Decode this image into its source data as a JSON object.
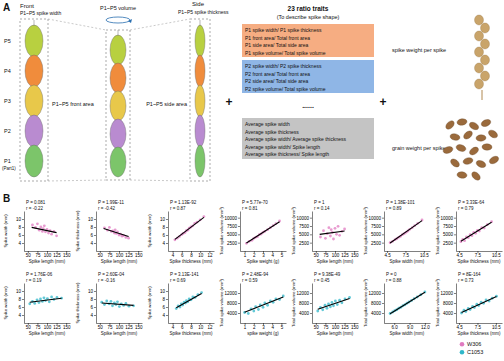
{
  "panel_a": {
    "label": "A",
    "front": {
      "title": "Front",
      "width_label": "P1~P5 spike width",
      "segments": [
        "P5",
        "P4",
        "P3",
        "P2",
        "P1"
      ],
      "segment_colors": [
        "#b8d040",
        "#f08c3c",
        "#e8c84a",
        "#b98bd0",
        "#7cc56a"
      ],
      "part_label": "(Part1)",
      "area_label": "P1~P5 front area"
    },
    "volume_label": "P1~P5 volume",
    "side": {
      "title": "Side",
      "thickness_label": "P1~P5 spike thickness",
      "area_label": "P1~P5 side area"
    },
    "plus": "+",
    "ratio": {
      "title": "23 ratio traits",
      "subtitle": "(To describe spike shape)",
      "groups": [
        {
          "color": "#f6ad82",
          "lines": [
            "P1 spike width/ P1 spike thickness",
            "P1 front area/ Total front area",
            "P1 side area/ Total side area",
            "P1 spike volume/ Total spike volume"
          ]
        },
        {
          "color": "#8fb6e6",
          "lines": [
            "P2 spike width/ P2 spike thickness",
            "P2 front area/ Total front area",
            "P2 side area/ Total side area",
            "P2 spike volume/ Total spike volume"
          ]
        }
      ],
      "ellipsis": "......",
      "average": {
        "color": "#c4c4c4",
        "lines": [
          "Average spike width",
          "Average spike thickness",
          "Average spike width/ Average spike thickness",
          "Average spike width/ Spike length",
          "Average spike thickness/ Spike length"
        ]
      }
    },
    "weights": [
      "spike weight per spike",
      "grain weight per spike"
    ]
  },
  "panel_b_label": "B",
  "figure_legend": {
    "entries": [
      {
        "name": "W306",
        "color": "#e07ac0"
      },
      {
        "name": "C1053",
        "color": "#2fb7c9"
      }
    ]
  },
  "chart_data": [
    {
      "type": "scatter",
      "x_label": "Spike length (mm)",
      "y_label": "Spike width (mm)",
      "annotations": [
        "P = 0.081",
        "r = -0.22"
      ],
      "xlim": [
        40,
        160
      ],
      "xticks": [
        50,
        75,
        100,
        125,
        150
      ],
      "ylim": [
        2,
        12
      ],
      "yticks": [
        4,
        6,
        8,
        10
      ],
      "series": [
        {
          "color": "#e07ac0",
          "x": [
            62,
            70,
            75,
            80,
            84,
            88,
            90,
            93,
            96,
            100,
            104,
            108,
            112,
            118,
            125
          ],
          "values": [
            8.5,
            7.9,
            8.8,
            7.2,
            8.0,
            6.9,
            7.6,
            8.3,
            6.8,
            7.4,
            6.5,
            7.1,
            6.2,
            6.9,
            5.8
          ]
        }
      ],
      "fit_line": {
        "x": [
          60,
          125
        ],
        "values": [
          7.9,
          6.6
        ]
      }
    },
    {
      "type": "scatter",
      "x_label": "Spike length (mm)",
      "y_label": "Spike thickness (mm)",
      "annotations": [
        "P = 1.99E-11",
        "r = -0.42"
      ],
      "xlim": [
        40,
        160
      ],
      "xticks": [
        50,
        75,
        100,
        125,
        150
      ],
      "ylim": [
        2,
        12
      ],
      "yticks": [
        4,
        6,
        8,
        10
      ],
      "series": [
        {
          "color": "#e07ac0",
          "x": [
            62,
            70,
            75,
            80,
            84,
            88,
            90,
            93,
            96,
            100,
            104,
            108,
            112,
            118,
            125
          ],
          "values": [
            7.8,
            7.2,
            7.9,
            6.9,
            7.0,
            6.5,
            7.3,
            6.4,
            6.8,
            6.0,
            6.2,
            5.7,
            5.9,
            5.4,
            5.2
          ]
        }
      ],
      "fit_line": {
        "x": [
          60,
          125
        ],
        "values": [
          7.6,
          5.6
        ]
      }
    },
    {
      "type": "scatter",
      "x_label": "Spike thickness (mm)",
      "y_label": "Spike width (mm)",
      "annotations": [
        "P = 1.13E-92",
        "r = 0.87"
      ],
      "xlim": [
        3,
        13
      ],
      "xticks": [
        4,
        6,
        8,
        10,
        12
      ],
      "ylim": [
        2,
        12
      ],
      "yticks": [
        4,
        6,
        8,
        10
      ],
      "series": [
        {
          "color": "#e07ac0",
          "x": [
            4.5,
            5,
            5.5,
            6,
            6.3,
            6.7,
            7,
            7.3,
            7.6,
            8,
            8.4,
            8.8,
            9.3,
            10,
            10.8
          ],
          "values": [
            4.8,
            5.2,
            5.6,
            6.1,
            6.4,
            6.6,
            7.1,
            7.2,
            7.7,
            8.0,
            8.3,
            8.9,
            9.2,
            9.8,
            10.6
          ]
        }
      ],
      "fit_line": {
        "x": [
          4.5,
          10.8
        ],
        "values": [
          4.9,
          10.4
        ]
      }
    },
    {
      "type": "scatter",
      "x_label": "Spike weight (g)",
      "y_label": "Total spike volume (mm³)",
      "annotations": [
        "P = 5.77e-70",
        "r = 0.81"
      ],
      "xlim": [
        0.5,
        5.5
      ],
      "xticks": [
        1,
        2,
        3,
        4,
        5
      ],
      "ylim": [
        0,
        12000
      ],
      "yticks": [
        2500,
        5000,
        7500,
        10000
      ],
      "series": [
        {
          "color": "#e07ac0",
          "x": [
            1.2,
            1.5,
            1.8,
            2.0,
            2.2,
            2.4,
            2.6,
            2.8,
            3.0,
            3.2,
            3.5,
            3.8,
            4.1,
            4.4,
            4.8
          ],
          "values": [
            2300,
            2900,
            3200,
            3800,
            4100,
            4300,
            4900,
            5100,
            5600,
            5900,
            6400,
            7000,
            7600,
            8200,
            9000
          ]
        }
      ],
      "fit_line": {
        "x": [
          1.2,
          4.8
        ],
        "values": [
          2400,
          8800
        ]
      }
    },
    {
      "type": "scatter",
      "x_label": "Spike length (mm)",
      "y_label": "Total spike volume (mm³)",
      "annotations": [
        "P = 1",
        "r = 0.14"
      ],
      "xlim": [
        40,
        160
      ],
      "xticks": [
        50,
        75,
        100,
        125,
        150
      ],
      "ylim": [
        0,
        12000
      ],
      "yticks": [
        2500,
        5000,
        7500,
        10000
      ],
      "series": [
        {
          "color": "#e07ac0",
          "x": [
            62,
            70,
            75,
            80,
            84,
            88,
            90,
            93,
            96,
            100,
            104,
            108,
            112,
            118,
            125
          ],
          "values": [
            4200,
            6100,
            3800,
            5200,
            7000,
            4500,
            6400,
            5600,
            3600,
            6800,
            5000,
            7400,
            4700,
            5900,
            6600
          ]
        }
      ],
      "fit_line": {
        "x": [
          60,
          125
        ],
        "values": [
          5000,
          6000
        ]
      }
    },
    {
      "type": "scatter",
      "x_label": "Spike width (mm)",
      "y_label": "Total spike volume (mm³)",
      "annotations": [
        "P = 1.38E-101",
        "r = 0.89"
      ],
      "xlim": [
        4,
        11.5
      ],
      "xticks": [
        4.5,
        7.5,
        10.5
      ],
      "ylim": [
        0,
        12000
      ],
      "yticks": [
        2500,
        5000,
        7500,
        10000
      ],
      "series": [
        {
          "color": "#e07ac0",
          "x": [
            5.0,
            5.4,
            5.8,
            6.1,
            6.4,
            6.7,
            7.0,
            7.3,
            7.6,
            7.9,
            8.2,
            8.6,
            9.0,
            9.5,
            10.2
          ],
          "values": [
            2500,
            2900,
            3400,
            3700,
            4100,
            4400,
            4900,
            5200,
            5600,
            6000,
            6500,
            7000,
            7600,
            8300,
            9300
          ]
        }
      ],
      "fit_line": {
        "x": [
          5.0,
          10.2
        ],
        "values": [
          2400,
          9100
        ]
      }
    },
    {
      "type": "scatter",
      "x_label": "Spike thickness (mm)",
      "y_label": "Total spike volume (mm³)",
      "annotations": [
        "P = 3.33E-64",
        "r = 0.79"
      ],
      "xlim": [
        4,
        11.5
      ],
      "xticks": [
        4.5,
        7.5,
        10.5
      ],
      "ylim": [
        0,
        12000
      ],
      "yticks": [
        2500,
        5000,
        7500,
        10000
      ],
      "series": [
        {
          "color": "#e07ac0",
          "x": [
            4.8,
            5.1,
            5.4,
            5.7,
            6.0,
            6.3,
            6.6,
            6.9,
            7.2,
            7.5,
            7.8,
            8.2,
            8.6,
            9.1,
            9.8
          ],
          "values": [
            2800,
            3500,
            3100,
            4200,
            4000,
            4900,
            4600,
            5600,
            5300,
            6200,
            6000,
            7000,
            6900,
            7900,
            8800
          ]
        }
      ],
      "fit_line": {
        "x": [
          4.8,
          9.8
        ],
        "values": [
          2900,
          8600
        ]
      }
    },
    {
      "type": "scatter",
      "x_label": "Spike length (mm)",
      "y_label": "Spike width (mm)",
      "annotations": [
        "P = 1.76E-06",
        "r = 0.19"
      ],
      "xlim": [
        40,
        160
      ],
      "xticks": [
        50,
        75,
        100,
        125,
        150
      ],
      "ylim": [
        2,
        12
      ],
      "yticks": [
        4,
        6,
        8,
        10
      ],
      "series": [
        {
          "color": "#2fb7c9",
          "x": [
            55,
            62,
            68,
            74,
            79,
            83,
            88,
            92,
            96,
            101,
            106,
            112,
            118,
            126,
            138
          ],
          "values": [
            6.8,
            7.4,
            6.9,
            7.8,
            7.1,
            8.0,
            7.4,
            8.3,
            7.6,
            8.1,
            7.3,
            8.5,
            7.9,
            8.4,
            8.2
          ]
        }
      ],
      "fit_line": {
        "x": [
          55,
          138
        ],
        "values": [
          7.2,
          8.2
        ]
      }
    },
    {
      "type": "scatter",
      "x_label": "Spike length (mm)",
      "y_label": "Spike thickness (mm)",
      "annotations": [
        "P = 2.60E-04",
        "r = -0.16"
      ],
      "xlim": [
        40,
        160
      ],
      "xticks": [
        50,
        75,
        100,
        125,
        150
      ],
      "ylim": [
        2,
        12
      ],
      "yticks": [
        4,
        6,
        8,
        10
      ],
      "series": [
        {
          "color": "#2fb7c9",
          "x": [
            55,
            62,
            68,
            74,
            79,
            83,
            88,
            92,
            96,
            101,
            106,
            112,
            118,
            126,
            138
          ],
          "values": [
            7.2,
            6.6,
            7.5,
            6.8,
            7.4,
            6.3,
            7.0,
            6.6,
            7.3,
            6.1,
            6.8,
            6.4,
            6.9,
            6.2,
            6.3
          ]
        }
      ],
      "fit_line": {
        "x": [
          55,
          138
        ],
        "values": [
          7.0,
          6.4
        ]
      }
    },
    {
      "type": "scatter",
      "x_label": "Spike thickness (mm)",
      "y_label": "Spike width (mm)",
      "annotations": [
        "P = 3.13E-141",
        "r = 0.69"
      ],
      "xlim": [
        3,
        13
      ],
      "xticks": [
        4,
        6,
        8,
        10,
        12
      ],
      "ylim": [
        2,
        12
      ],
      "yticks": [
        4,
        6,
        8,
        10
      ],
      "series": [
        {
          "color": "#2fb7c9",
          "x": [
            4.8,
            5.2,
            5.6,
            5.9,
            6.2,
            6.5,
            6.8,
            7.0,
            7.3,
            7.6,
            8.0,
            8.4,
            8.9,
            9.5,
            10.3
          ],
          "values": [
            5.6,
            6.3,
            6.0,
            6.8,
            6.5,
            7.2,
            7.0,
            7.6,
            7.3,
            8.0,
            7.8,
            8.5,
            8.4,
            9.1,
            9.6
          ]
        }
      ],
      "fit_line": {
        "x": [
          4.8,
          10.3
        ],
        "values": [
          5.8,
          9.4
        ]
      }
    },
    {
      "type": "scatter",
      "x_label": "spike weight (g)",
      "y_label": "Total spike volume (mm³)",
      "annotations": [
        "P = 2.48E-94",
        "r = 0.59"
      ],
      "xlim": [
        0.5,
        5.5
      ],
      "xticks": [
        1,
        2,
        3,
        4,
        5
      ],
      "ylim": [
        0,
        16000
      ],
      "yticks": [
        4000,
        8000,
        12000
      ],
      "series": [
        {
          "color": "#2fb7c9",
          "x": [
            1.0,
            1.4,
            1.7,
            2.0,
            2.2,
            2.5,
            2.7,
            3.0,
            3.2,
            3.5,
            3.8,
            4.1,
            4.4,
            4.8,
            5.2
          ],
          "values": [
            4200,
            3800,
            5600,
            4800,
            6500,
            5400,
            7200,
            6300,
            8000,
            7100,
            8800,
            8300,
            9600,
            9400,
            10800
          ]
        }
      ],
      "fit_line": {
        "x": [
          1.0,
          5.2
        ],
        "values": [
          4300,
          10400
        ]
      }
    },
    {
      "type": "scatter",
      "x_label": "Spike length (mm)",
      "y_label": "Total spike volume (mm³)",
      "annotations": [
        "P = 9.38E-49",
        "r = 0.45"
      ],
      "xlim": [
        40,
        160
      ],
      "xticks": [
        50,
        75,
        100,
        125,
        150
      ],
      "ylim": [
        0,
        16000
      ],
      "yticks": [
        4000,
        8000,
        12000
      ],
      "series": [
        {
          "color": "#2fb7c9",
          "x": [
            55,
            62,
            68,
            74,
            79,
            83,
            88,
            92,
            96,
            101,
            106,
            112,
            118,
            126,
            138
          ],
          "values": [
            4800,
            6200,
            5300,
            7100,
            5900,
            7600,
            6500,
            8200,
            6900,
            8800,
            7400,
            9100,
            8100,
            9600,
            10200
          ]
        }
      ],
      "fit_line": {
        "x": [
          55,
          138
        ],
        "values": [
          5500,
          9800
        ]
      }
    },
    {
      "type": "scatter",
      "x_label": "Spike width (mm)",
      "y_label": "Total spike volume (mm³)",
      "annotations": [
        "P = 0",
        "r = 0.88"
      ],
      "xlim": [
        4,
        13
      ],
      "xticks": [
        {
          "value": 6,
          "label": "6.0"
        },
        {
          "value": 9,
          "label": "9.0"
        },
        {
          "value": 12,
          "label": "12.0"
        }
      ],
      "ylim": [
        0,
        16000
      ],
      "yticks": [
        4000,
        8000,
        12000
      ],
      "series": [
        {
          "color": "#2fb7c9",
          "x": [
            5.2,
            5.7,
            6.1,
            6.5,
            6.9,
            7.3,
            7.7,
            8.1,
            8.5,
            8.9,
            9.4,
            9.9,
            10.5,
            11.2,
            12.0
          ],
          "values": [
            3800,
            4400,
            4900,
            5300,
            5900,
            6300,
            6900,
            7300,
            7900,
            8400,
            9000,
            9700,
            10400,
            11300,
            12400
          ]
        }
      ],
      "fit_line": {
        "x": [
          5.2,
          12.0
        ],
        "values": [
          3700,
          12300
        ]
      }
    },
    {
      "type": "scatter",
      "x_label": "Spike thickness (mm)",
      "y_label": "Total spike volume (mm³)",
      "annotations": [
        "P = 8E-164",
        "r = 0.73"
      ],
      "xlim": [
        4,
        11.5
      ],
      "xticks": [
        4.5,
        7.5,
        10.5
      ],
      "ylim": [
        0,
        16000
      ],
      "yticks": [
        4000,
        8000,
        12000
      ],
      "series": [
        {
          "color": "#2fb7c9",
          "x": [
            4.9,
            5.3,
            5.6,
            6.0,
            6.3,
            6.7,
            7.0,
            7.4,
            7.7,
            8.1,
            8.5,
            8.9,
            9.4,
            9.9,
            10.6
          ],
          "values": [
            4000,
            5100,
            4600,
            5800,
            5400,
            6600,
            6200,
            7500,
            7000,
            8300,
            7900,
            9200,
            8800,
            9900,
            10700
          ]
        }
      ],
      "fit_line": {
        "x": [
          4.9,
          10.6
        ],
        "values": [
          4200,
          10600
        ]
      }
    }
  ]
}
